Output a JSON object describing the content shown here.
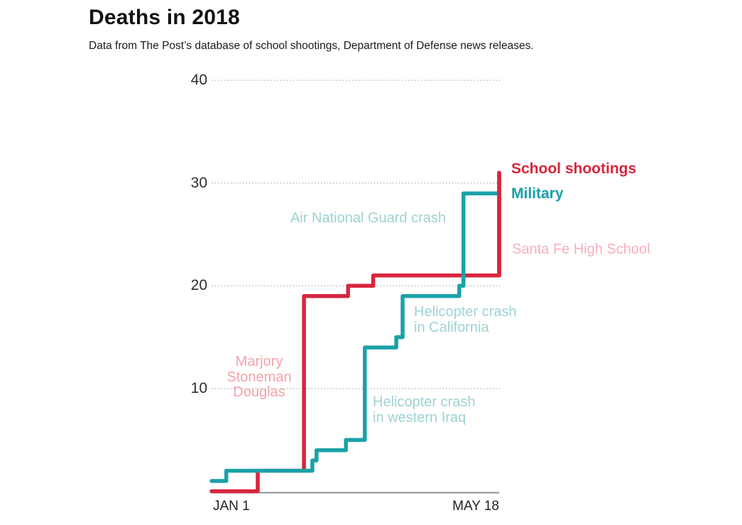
{
  "header": {
    "title": "Deaths in 2018",
    "subtitle": "Data from The Post’s database of school shootings, Department of Defense news releases."
  },
  "legend": {
    "school_shootings": {
      "label": "School shootings",
      "color": "#d8253c"
    },
    "military": {
      "label": "Military",
      "color": "#1b9fa7"
    }
  },
  "chart_data": {
    "type": "line",
    "subtype": "step-after",
    "title": "Deaths in 2018",
    "x_axis": {
      "start_label": "JAN 1",
      "end_label": "MAY 18",
      "total_days": 137
    },
    "y_axis": {
      "ticks": [
        10,
        20,
        30,
        40
      ],
      "ylim": [
        0,
        40
      ],
      "grid": "dotted-horizontal"
    },
    "legend_position": "right-of-line-ends",
    "series": [
      {
        "name": "School shootings",
        "color": "#d8253c",
        "points": [
          [
            0,
            0
          ],
          [
            22,
            2
          ],
          [
            44,
            19
          ],
          [
            65,
            20
          ],
          [
            77,
            21
          ],
          [
            137,
            31
          ]
        ],
        "final_value": 31
      },
      {
        "name": "Military",
        "color": "#1ba1a8",
        "points": [
          [
            0,
            1
          ],
          [
            7,
            2
          ],
          [
            48,
            3
          ],
          [
            50,
            4
          ],
          [
            64,
            5
          ],
          [
            73,
            14
          ],
          [
            88,
            15
          ],
          [
            91,
            19
          ],
          [
            118,
            20
          ],
          [
            120,
            29
          ],
          [
            137,
            29
          ]
        ],
        "final_value": 29
      }
    ],
    "annotations": [
      {
        "text": "Air National Guard crash",
        "series": "Military",
        "color": "#9fd2d3"
      },
      {
        "text": "Santa Fe High School",
        "series": "School shootings",
        "color": "#f7b0ba"
      },
      {
        "text": "Helicopter crash\nin California",
        "series": "Military",
        "color": "#9fd2d3"
      },
      {
        "text": "Marjory\nStoneman\nDouglas",
        "series": "School shootings",
        "color": "#f2a3ab"
      },
      {
        "text": "Helicopter crash\nin western Iraq",
        "series": "Military",
        "color": "#9fd2d3"
      }
    ],
    "axis_colors": {
      "gridline": "#b3b3b3",
      "baseline": "#8f8f8f",
      "tick_text": "#2e2e2e"
    }
  }
}
